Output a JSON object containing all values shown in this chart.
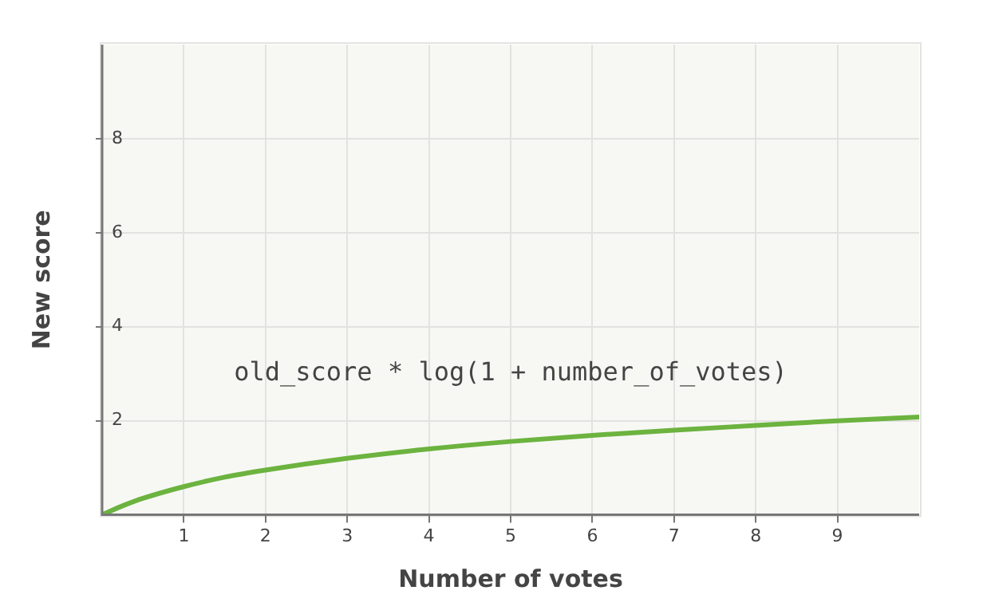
{
  "chart_data": {
    "type": "line",
    "xlabel": "Number of votes",
    "ylabel": "New score",
    "x": [
      0,
      0.1,
      0.25,
      0.5,
      1,
      1.5,
      2,
      3,
      4,
      5,
      6,
      7,
      8,
      9,
      10
    ],
    "series": [
      {
        "color": "#6cb33f",
        "values": [
          0,
          0.08,
          0.19,
          0.35,
          0.6,
          0.8,
          0.95,
          1.2,
          1.4,
          1.56,
          1.69,
          1.8,
          1.9,
          2.0,
          2.08
        ]
      }
    ],
    "xlim": [
      0,
      10
    ],
    "xticks": [
      1,
      2,
      3,
      4,
      5,
      6,
      7,
      8,
      9
    ],
    "ylim": [
      0,
      10
    ],
    "yticks": [
      2,
      4,
      6,
      8
    ],
    "grid": true,
    "legend": false,
    "marker": "none",
    "line_style": "solid",
    "annotations": [
      "old_score * log(1 + number_of_votes)"
    ]
  }
}
